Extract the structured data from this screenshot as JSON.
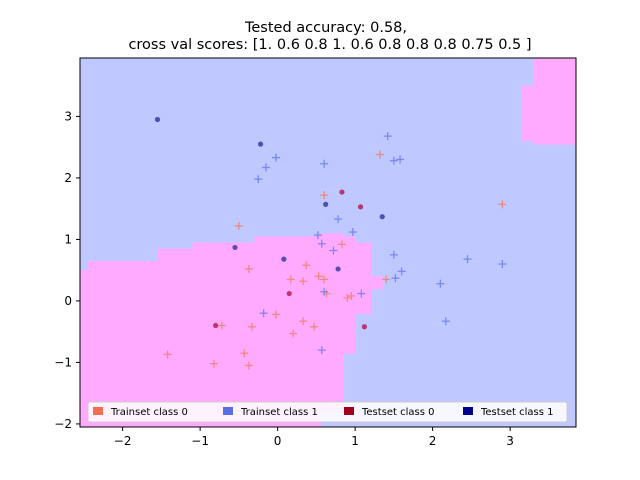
{
  "chart_data": {
    "type": "scatter",
    "title": [
      "Tested accuracy: 0.58,",
      "cross val scores: [1.   0.6  0.8  1.   0.6  0.8  0.8  0.8  0.75 0.5 ]"
    ],
    "xlabel": "",
    "ylabel": "",
    "xlim": [
      -2.55,
      3.85
    ],
    "ylim": [
      -2.05,
      3.95
    ],
    "xticks": [
      "−2",
      "−1",
      "0",
      "1",
      "2",
      "3"
    ],
    "xtick_values": [
      -2,
      -1,
      0,
      1,
      2,
      3
    ],
    "yticks": [
      "−2",
      "−1",
      "0",
      "1",
      "2",
      "3"
    ],
    "ytick_values": [
      -2,
      -1,
      0,
      1,
      2,
      3
    ],
    "grid": false,
    "legend_placement": "bottom",
    "colors": {
      "background_region": "#bfc8ff",
      "class0_region": "#ffaaff",
      "train0": "#f08070",
      "train1": "#6e7ef0",
      "test0": "#b41e5a",
      "test1": "#3c3ca0"
    },
    "legend": [
      {
        "label": "Trainset class 0",
        "color": "#f56e50"
      },
      {
        "label": "Trainset class 1",
        "color": "#5a6ee6"
      },
      {
        "label": "Testset class 0",
        "color": "#a0001e"
      },
      {
        "label": "Testset class 1",
        "color": "#00008c"
      }
    ],
    "region_class0": [
      {
        "x0": -2.55,
        "x1": -2.45,
        "y0": -2.05,
        "y1": 0.5
      },
      {
        "x0": -2.45,
        "x1": -1.55,
        "y0": -2.05,
        "y1": 0.65
      },
      {
        "x0": -1.55,
        "x1": -1.1,
        "y0": -2.05,
        "y1": 0.85
      },
      {
        "x0": -1.1,
        "x1": -0.3,
        "y0": -2.05,
        "y1": 0.95
      },
      {
        "x0": -0.3,
        "x1": 0.55,
        "y0": -2.05,
        "y1": 1.05
      },
      {
        "x0": 0.55,
        "x1": 0.85,
        "y0": -1.8,
        "y1": 1.1
      },
      {
        "x0": 0.85,
        "x1": 1.0,
        "y0": -0.85,
        "y1": 1.05
      },
      {
        "x0": 1.0,
        "x1": 1.2,
        "y0": -0.2,
        "y1": 0.95
      },
      {
        "x0": 1.2,
        "x1": 1.35,
        "y0": 0.2,
        "y1": 0.4
      },
      {
        "x0": 3.3,
        "x1": 3.85,
        "y0": 3.0,
        "y1": 3.95
      },
      {
        "x0": 3.15,
        "x1": 3.3,
        "y0": 2.6,
        "y1": 3.5
      },
      {
        "x0": 3.3,
        "x1": 3.85,
        "y0": 2.55,
        "y1": 3.0
      }
    ],
    "series": [
      {
        "name": "Trainset class 0",
        "marker": "plus",
        "x": [
          -0.5,
          -0.37,
          -0.33,
          -1.42,
          -0.82,
          -0.72,
          -0.43,
          -0.37,
          -0.02,
          0.17,
          0.2,
          0.33,
          0.37,
          0.33,
          0.47,
          0.53,
          0.6,
          0.63,
          0.6,
          0.83,
          0.9,
          0.95,
          1.32,
          1.4,
          2.9
        ],
        "y": [
          1.22,
          0.52,
          -0.42,
          -0.87,
          -1.02,
          -0.4,
          -0.85,
          -1.05,
          -0.22,
          0.35,
          -0.53,
          0.32,
          0.58,
          -0.33,
          -0.42,
          0.4,
          0.35,
          0.12,
          1.72,
          0.92,
          0.05,
          0.08,
          2.38,
          0.35,
          1.57
        ]
      },
      {
        "name": "Trainset class 1",
        "marker": "plus",
        "x": [
          -0.25,
          -0.15,
          -0.02,
          -0.18,
          0.52,
          0.57,
          0.6,
          0.72,
          0.78,
          0.97,
          1.08,
          1.42,
          1.5,
          1.58,
          1.5,
          1.52,
          1.6,
          2.1,
          2.17,
          2.45,
          2.9,
          0.57,
          0.6
        ],
        "y": [
          1.98,
          2.17,
          2.33,
          -0.2,
          1.07,
          0.93,
          2.23,
          0.82,
          1.33,
          1.12,
          0.12,
          2.68,
          2.28,
          2.3,
          0.75,
          0.37,
          0.48,
          0.28,
          -0.33,
          0.68,
          0.6,
          -0.8,
          0.15
        ]
      },
      {
        "name": "Testset class 0",
        "marker": "dot",
        "x": [
          -0.8,
          0.15,
          0.83,
          1.07,
          1.12
        ],
        "y": [
          -0.4,
          0.12,
          1.77,
          1.53,
          -0.42
        ]
      },
      {
        "name": "Testset class 1",
        "marker": "dot",
        "x": [
          -1.55,
          -0.22,
          -0.55,
          0.08,
          0.62,
          0.78,
          1.35
        ],
        "y": [
          2.95,
          2.55,
          0.87,
          0.68,
          1.57,
          0.52,
          1.37
        ]
      }
    ]
  }
}
